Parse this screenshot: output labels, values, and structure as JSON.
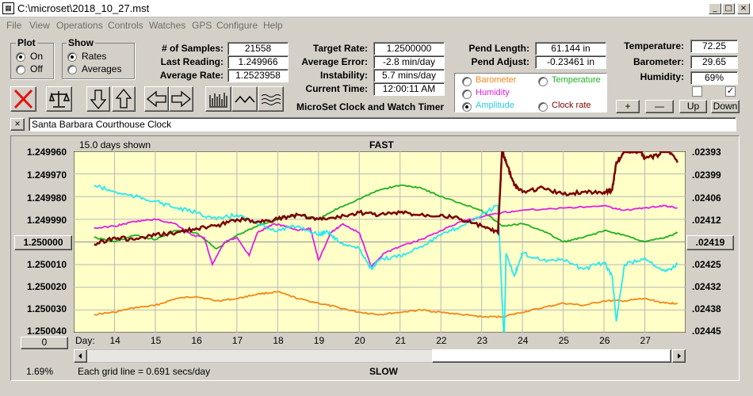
{
  "window": {
    "title": "C:\\microset\\2018_10_27.mst",
    "minimize": "_",
    "maximize": "□",
    "close": "×"
  },
  "menu": [
    "File",
    "View",
    "Operations",
    "Controls",
    "Watches",
    "GPS",
    "Configure",
    "Help"
  ],
  "plot_group": {
    "title": "Plot",
    "on": "On",
    "off": "Off",
    "selected": "On"
  },
  "show_group": {
    "title": "Show",
    "rates": "Rates",
    "averages": "Averages",
    "selected": "Rates"
  },
  "stats": {
    "samples_label": "# of Samples:",
    "samples": "21558",
    "last_label": "Last Reading:",
    "last": "1.249966",
    "avg_label": "Average Rate:",
    "avg": "1.2523958"
  },
  "rates": {
    "target_label": "Target Rate:",
    "target": "1.2500000",
    "err_label": "Average Error:",
    "err": "-2.8 min/day",
    "inst_label": "Instability:",
    "inst": "5.7 mins/day",
    "time_label": "Current Time:",
    "time": "12:00:11 AM"
  },
  "pend": {
    "length_label": "Pend Length:",
    "length": "61.144 in",
    "adjust_label": "Pend Adjust:",
    "adjust": "-0.23461 in"
  },
  "env": {
    "temp_label": "Temperature:",
    "temp": "72.25",
    "baro_label": "Barometer:",
    "baro": "29.65",
    "hum_label": "Humidity:",
    "hum": "69%"
  },
  "series_select": {
    "barometer": "Barometer",
    "temperature": "Temperature",
    "humidity": "Humidity",
    "amplitude": "Amplitude",
    "clock_rate": "Clock rate",
    "selected": "Amplitude"
  },
  "app_title": "MicroSet Clock and Watch Timer",
  "step_buttons": {
    "plus": "+",
    "minus": "—",
    "up": "Up",
    "down": "Down"
  },
  "checkboxes": {
    "first_checked": false,
    "second_checked": true,
    "check_mark": "✓"
  },
  "watch_name": "Santa Barbara Courthouse Clock",
  "watch_close": "×",
  "chart_data": {
    "type": "line",
    "top_label": "FAST",
    "bottom_label": "SLOW",
    "days_shown": "15.0 days shown",
    "grid_note": "Each grid line = 0.691 secs/day",
    "percent": "1.69%",
    "left_ticks": [
      "1.249960",
      "1.249970",
      "1.249980",
      "1.249990",
      "1.250000",
      "1.250010",
      "1.250020",
      "1.250030",
      "1.250040"
    ],
    "right_ticks": [
      ".02393",
      ".02399",
      ".02406",
      ".02412",
      ".02419",
      ".02425",
      ".02432",
      ".02438",
      ".02445"
    ],
    "x_label": "Day:",
    "x_ticks": [
      "14",
      "15",
      "16",
      "17",
      "18",
      "19",
      "20",
      "21",
      "22",
      "23",
      "24",
      "25",
      "26",
      "27"
    ],
    "x_range": [
      13.0,
      28.0
    ],
    "ylim": [
      1.24996,
      1.25004
    ],
    "left_button": "1.250000",
    "right_button": ".02419",
    "zero_button": "0",
    "background": "#ffffc8",
    "series": [
      {
        "name": "Clock rate",
        "color": "#7a0000",
        "x": [
          13.5,
          14.0,
          14.5,
          15.0,
          15.5,
          16.0,
          16.5,
          17.0,
          17.5,
          18.0,
          18.5,
          19.0,
          19.5,
          20.0,
          20.5,
          21.0,
          21.5,
          22.0,
          22.5,
          23.0,
          23.4,
          23.5,
          23.6,
          23.8,
          24.0,
          24.5,
          25.0,
          25.5,
          26.0,
          26.2,
          26.3,
          26.5,
          26.9,
          27.0,
          27.3,
          27.5,
          27.8
        ],
        "y": [
          1.250001,
          1.249998,
          1.249999,
          1.249997,
          1.249996,
          1.249994,
          1.249993,
          1.24999,
          1.249991,
          1.24999,
          1.249988,
          1.24999,
          1.249989,
          1.249987,
          1.249988,
          1.249987,
          1.249988,
          1.249988,
          1.24999,
          1.249993,
          1.249996,
          1.24996,
          1.249965,
          1.249975,
          1.249978,
          1.249976,
          1.249979,
          1.249978,
          1.249978,
          1.249977,
          1.249965,
          1.24996,
          1.24996,
          1.249963,
          1.249962,
          1.249958,
          1.249965
        ]
      },
      {
        "name": "Amplitude",
        "color": "#28e8f0",
        "x": [
          13.5,
          14.0,
          14.5,
          15.0,
          15.5,
          16.0,
          16.5,
          17.0,
          17.5,
          18.0,
          18.5,
          19.0,
          19.2,
          19.5,
          20.0,
          20.3,
          20.5,
          21.0,
          21.5,
          22.0,
          22.5,
          23.0,
          23.4,
          23.55,
          23.6,
          23.8,
          24.0,
          24.5,
          25.0,
          25.5,
          26.0,
          26.2,
          26.3,
          26.5,
          27.0,
          27.5,
          27.8
        ],
        "y": [
          1.249975,
          1.249978,
          1.24998,
          1.249982,
          1.249985,
          1.249987,
          1.24999,
          1.249988,
          1.249992,
          1.249995,
          1.249993,
          1.249997,
          1.249995,
          1.25,
          1.250003,
          1.250012,
          1.250008,
          1.250006,
          1.250002,
          1.249997,
          1.249993,
          1.249988,
          1.249984,
          1.250045,
          1.250005,
          1.250015,
          1.250005,
          1.250008,
          1.250008,
          1.250012,
          1.250009,
          1.250015,
          1.250035,
          1.25001,
          1.250007,
          1.250013,
          1.25001
        ]
      },
      {
        "name": "Humidity",
        "color": "#e020e0",
        "x": [
          13.5,
          14.0,
          14.5,
          15.0,
          15.5,
          15.9,
          16.2,
          16.4,
          16.7,
          17.0,
          17.3,
          17.5,
          17.9,
          18.2,
          18.5,
          18.8,
          19.0,
          19.3,
          19.6,
          20.0,
          20.3,
          20.6,
          21.0,
          21.5,
          22.0,
          22.5,
          23.0,
          23.5,
          24.0,
          25.0,
          26.0,
          26.5,
          27.0,
          27.5,
          27.8
        ],
        "y": [
          1.249994,
          1.249993,
          1.249991,
          1.24999,
          1.249992,
          1.249997,
          1.249998,
          1.25001,
          1.25,
          1.249998,
          1.250006,
          1.249996,
          1.249992,
          1.249993,
          1.249995,
          1.249994,
          1.250008,
          1.249996,
          1.249992,
          1.249996,
          1.250011,
          1.250005,
          1.250002,
          1.249999,
          1.249995,
          1.249991,
          1.249989,
          1.249987,
          1.249986,
          1.249985,
          1.249984,
          1.249986,
          1.249985,
          1.249984,
          1.249985
        ]
      },
      {
        "name": "Temperature",
        "color": "#20b020",
        "x": [
          13.5,
          14.0,
          14.5,
          15.0,
          15.5,
          16.0,
          16.5,
          17.0,
          17.5,
          18.0,
          18.5,
          19.0,
          19.5,
          20.0,
          20.5,
          21.0,
          21.5,
          22.0,
          22.5,
          23.0,
          23.5,
          24.0,
          24.5,
          25.0,
          25.5,
          26.0,
          26.5,
          27.0,
          27.5,
          27.8
        ],
        "y": [
          1.249998,
          1.25,
          1.249997,
          1.249999,
          1.249995,
          1.249996,
          1.250003,
          1.249997,
          1.249993,
          1.24999,
          1.249988,
          1.24999,
          1.249985,
          1.249981,
          1.249977,
          1.249975,
          1.249976,
          1.24998,
          1.249983,
          1.249986,
          1.249993,
          1.249992,
          1.249995,
          1.25,
          1.249998,
          1.249995,
          1.249997,
          1.25,
          1.249998,
          1.249996
        ]
      },
      {
        "name": "Barometer",
        "color": "#f08818",
        "x": [
          13.5,
          14.0,
          14.5,
          15.0,
          15.5,
          16.0,
          16.5,
          17.0,
          17.5,
          18.0,
          18.5,
          19.0,
          19.5,
          20.0,
          20.5,
          21.0,
          21.5,
          22.0,
          22.5,
          23.0,
          23.5,
          24.0,
          24.5,
          25.0,
          25.5,
          26.0,
          26.5,
          27.0,
          27.5,
          27.8
        ],
        "y": [
          1.250032,
          1.250031,
          1.250029,
          1.250028,
          1.250025,
          1.250024,
          1.250026,
          1.250025,
          1.250023,
          1.250022,
          1.250025,
          1.250027,
          1.250029,
          1.250031,
          1.250032,
          1.250031,
          1.25003,
          1.250031,
          1.250032,
          1.250033,
          1.250033,
          1.250031,
          1.250029,
          1.250027,
          1.250028,
          1.250026,
          1.250026,
          1.250025,
          1.250027,
          1.250027
        ]
      }
    ]
  }
}
